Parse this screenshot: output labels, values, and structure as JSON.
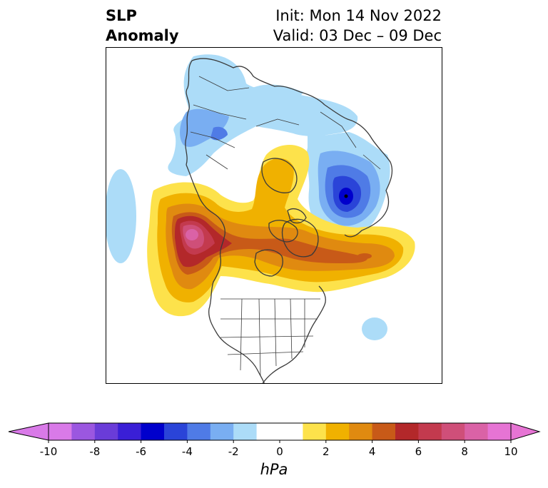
{
  "title": {
    "left_line1": "SLP",
    "left_line2": "Anomaly",
    "right_line1": "Init: Mon 14 Nov 2022",
    "right_line2": "Valid: 03 Dec – 09 Dec"
  },
  "colorbar": {
    "unit": "hPa",
    "extend": "both",
    "levels": [
      -10,
      -9,
      -8,
      -7,
      -6,
      -5,
      -4,
      -3,
      -2,
      -1,
      1,
      2,
      3,
      4,
      5,
      6,
      7,
      8,
      9,
      10
    ],
    "tick_labels": [
      "-10",
      "-8",
      "-6",
      "-4",
      "-2",
      "0",
      "2",
      "4",
      "6",
      "8",
      "10"
    ],
    "colors": [
      "#d97ae8",
      "#9b57e0",
      "#6a3cd8",
      "#3a1fd6",
      "#0000cc",
      "#2a44d8",
      "#4f7be6",
      "#79aef2",
      "#acdcf8",
      "#ffffff",
      "#fde24b",
      "#f0b100",
      "#e08a10",
      "#c85a18",
      "#b3282a",
      "#c33a4e",
      "#cf4f79",
      "#da62a6",
      "#e674d4"
    ]
  },
  "map": {
    "projection": "north-polar-stereographic",
    "field": "SLP anomaly",
    "features": [
      {
        "name": "positive anomaly over Gulf of Alaska / NE Pacific",
        "peak_hpa": 9
      },
      {
        "name": "positive anomaly over northern Canada / Greenland",
        "peak_hpa": 5
      },
      {
        "name": "negative anomaly over Scandinavia / NW Russia",
        "peak_hpa": -6
      },
      {
        "name": "negative anomaly over Siberia",
        "peak_hpa": -3
      }
    ]
  }
}
